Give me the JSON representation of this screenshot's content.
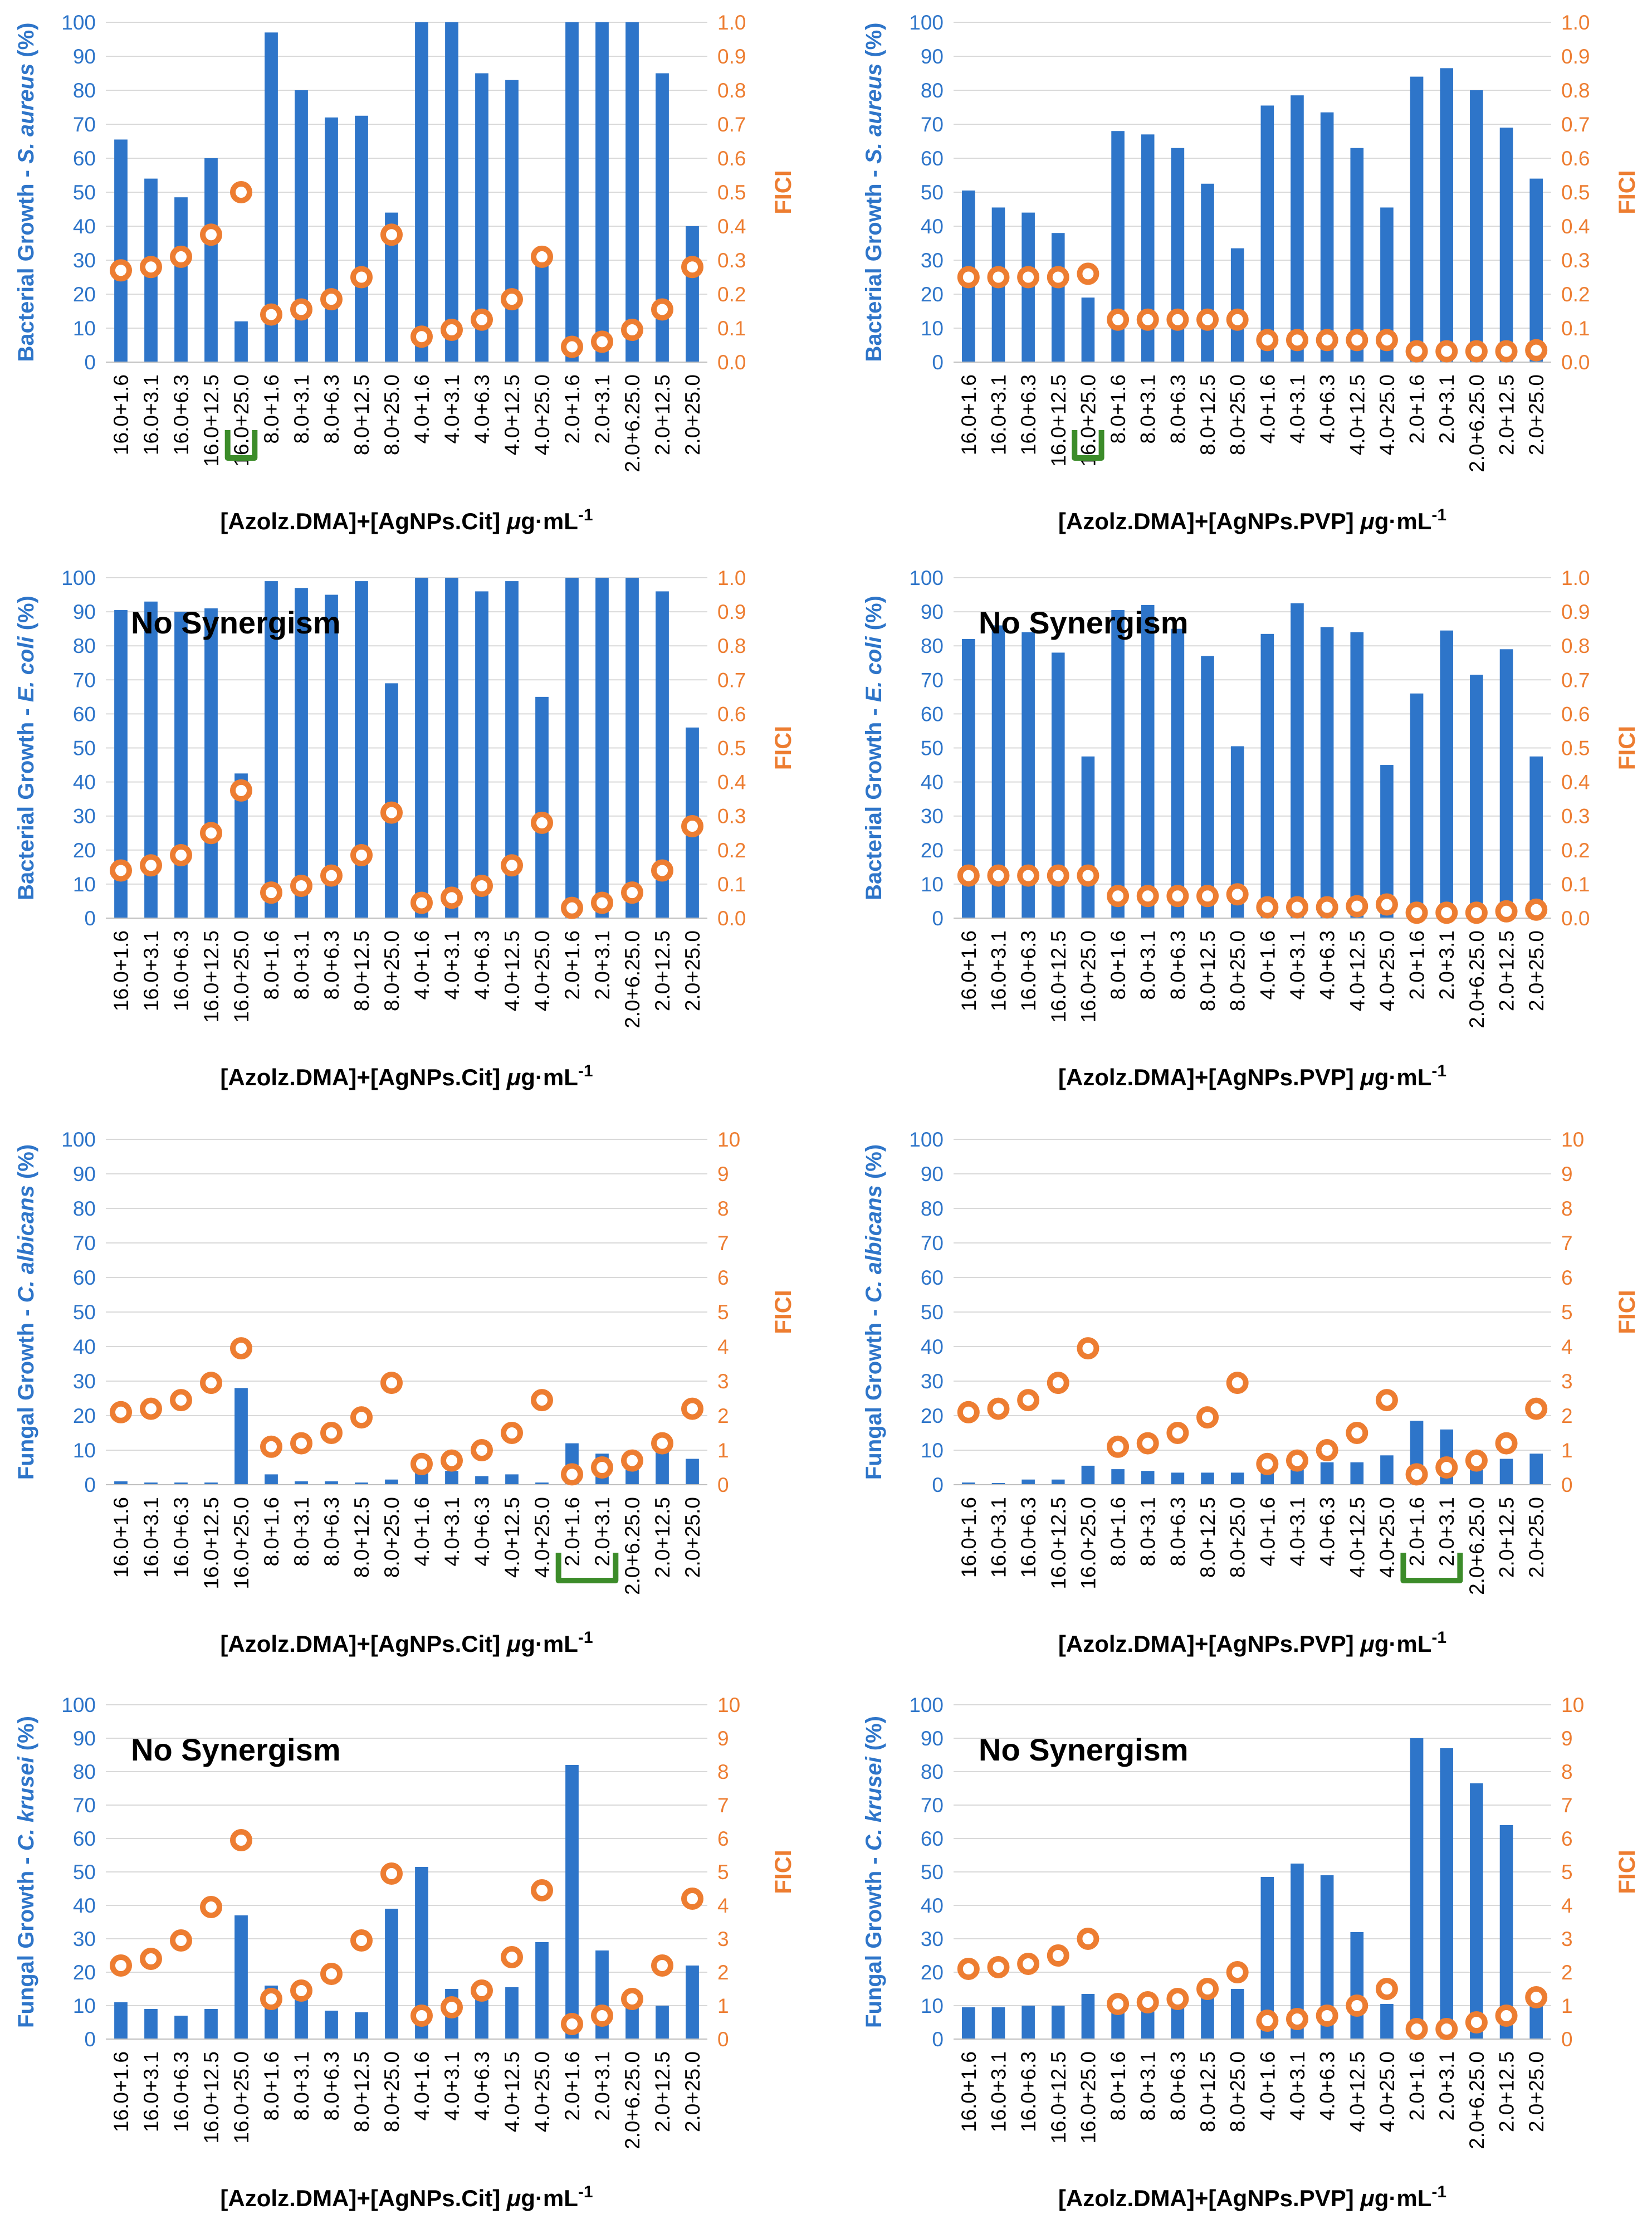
{
  "colors": {
    "bar": "#2E75C9",
    "fici": "#ED7D31",
    "axis_left": "#2E75C9",
    "axis_right": "#ED7D31",
    "grid": "#D9D9D9",
    "bracket": "#3C8C2A",
    "text": "#000000"
  },
  "labels": {
    "fici": "FICI",
    "no_synergism": "No Synergism",
    "xlabel_prefix": "[Azolz.DMA]+[AgNPs.",
    "xlabel_cit": "Cit",
    "xlabel_pvp": "PVP",
    "xlabel_suffix": "] ",
    "unit_mu": "μ",
    "unit_rest": "g·mL",
    "unit_exp": "-1",
    "ylabel_bacterial": "Bacterial Growth - ",
    "ylabel_fungal": "Fungal Growth - ",
    "ylabel_pct": " (%)",
    "org_sa": "S. aureus",
    "org_ec": "E. coli",
    "org_ca": "C. albicans",
    "org_ck": "C. krusei"
  },
  "chart_data": [
    {
      "type": "bar+scatter",
      "organism": "S. aureus",
      "nanoparticle": "Cit",
      "categories": [
        "16.0+1.6",
        "16.0+3.1",
        "16.0+6.3",
        "16.0+12.5",
        "16.0+25.0",
        "8.0+1.6",
        "8.0+3.1",
        "8.0+6.3",
        "8.0+12.5",
        "8.0+25.0",
        "4.0+1.6",
        "4.0+3.1",
        "4.0+6.3",
        "4.0+12.5",
        "4.0+25.0",
        "2.0+1.6",
        "2.0+3.1",
        "2.0+6.25.0",
        "2.0+12.5",
        "2.0+25.0"
      ],
      "bacterial_growth": [
        65.5,
        54,
        48.5,
        60,
        12,
        97,
        80,
        72,
        72.5,
        44,
        100,
        100,
        85,
        83,
        32,
        100,
        100,
        100,
        85,
        40
      ],
      "fici": [
        0.27,
        0.28,
        0.31,
        0.375,
        0.5,
        0.14,
        0.155,
        0.185,
        0.25,
        0.375,
        0.075,
        0.095,
        0.125,
        0.185,
        0.31,
        0.045,
        0.06,
        0.095,
        0.155,
        0.28
      ],
      "ylim": [
        0,
        100
      ],
      "y2lim": [
        0,
        1.0
      ],
      "y_ticks": [
        "0",
        "10",
        "20",
        "30",
        "40",
        "50",
        "60",
        "70",
        "80",
        "90",
        "100"
      ],
      "y2_ticks": [
        "0.0",
        "0.1",
        "0.2",
        "0.3",
        "0.4",
        "0.5",
        "0.6",
        "0.7",
        "0.8",
        "0.9",
        "1.0"
      ],
      "synergism_note": "",
      "bracket_start": 4,
      "bracket_end": 4
    },
    {
      "type": "bar+scatter",
      "organism": "S. aureus",
      "nanoparticle": "PVP",
      "categories": [
        "16.0+1.6",
        "16.0+3.1",
        "16.0+6.3",
        "16.0+12.5",
        "16.0+25.0",
        "8.0+1.6",
        "8.0+3.1",
        "8.0+6.3",
        "8.0+12.5",
        "8.0+25.0",
        "4.0+1.6",
        "4.0+3.1",
        "4.0+6.3",
        "4.0+12.5",
        "4.0+25.0",
        "2.0+1.6",
        "2.0+3.1",
        "2.0+6.25.0",
        "2.0+12.5",
        "2.0+25.0"
      ],
      "bacterial_growth": [
        50.5,
        45.5,
        44,
        38,
        19,
        68,
        67,
        63,
        52.5,
        33.5,
        75.5,
        78.5,
        73.5,
        63,
        45.5,
        84,
        86.5,
        80,
        69,
        54
      ],
      "fici": [
        0.25,
        0.25,
        0.25,
        0.25,
        0.26,
        0.125,
        0.125,
        0.125,
        0.125,
        0.125,
        0.065,
        0.065,
        0.065,
        0.065,
        0.065,
        0.032,
        0.032,
        0.032,
        0.032,
        0.035
      ],
      "ylim": [
        0,
        100
      ],
      "y2lim": [
        0,
        1.0
      ],
      "y_ticks": [
        "0",
        "10",
        "20",
        "30",
        "40",
        "50",
        "60",
        "70",
        "80",
        "90",
        "100"
      ],
      "y2_ticks": [
        "0.0",
        "0.1",
        "0.2",
        "0.3",
        "0.4",
        "0.5",
        "0.6",
        "0.7",
        "0.8",
        "0.9",
        "1.0"
      ],
      "synergism_note": "",
      "bracket_start": 4,
      "bracket_end": 4
    },
    {
      "type": "bar+scatter",
      "organism": "E. coli",
      "nanoparticle": "Cit",
      "categories": [
        "16.0+1.6",
        "16.0+3.1",
        "16.0+6.3",
        "16.0+12.5",
        "16.0+25.0",
        "8.0+1.6",
        "8.0+3.1",
        "8.0+6.3",
        "8.0+12.5",
        "8.0+25.0",
        "4.0+1.6",
        "4.0+3.1",
        "4.0+6.3",
        "4.0+12.5",
        "4.0+25.0",
        "2.0+1.6",
        "2.0+3.1",
        "2.0+6.25.0",
        "2.0+12.5",
        "2.0+25.0"
      ],
      "bacterial_growth": [
        90.5,
        93,
        90,
        91,
        42.5,
        99,
        97,
        95,
        99,
        69,
        100,
        100,
        96,
        99,
        65,
        100,
        100,
        100,
        96,
        56
      ],
      "fici": [
        0.14,
        0.155,
        0.185,
        0.25,
        0.375,
        0.075,
        0.095,
        0.125,
        0.185,
        0.31,
        0.045,
        0.06,
        0.095,
        0.155,
        0.28,
        0.03,
        0.045,
        0.075,
        0.14,
        0.27
      ],
      "ylim": [
        0,
        100
      ],
      "y2lim": [
        0,
        1.0
      ],
      "y_ticks": [
        "0",
        "10",
        "20",
        "30",
        "40",
        "50",
        "60",
        "70",
        "80",
        "90",
        "100"
      ],
      "y2_ticks": [
        "0.0",
        "0.1",
        "0.2",
        "0.3",
        "0.4",
        "0.5",
        "0.6",
        "0.7",
        "0.8",
        "0.9",
        "1.0"
      ],
      "synergism_note": "No Synergism",
      "bracket_start": -1,
      "bracket_end": -1
    },
    {
      "type": "bar+scatter",
      "organism": "E. coli",
      "nanoparticle": "PVP",
      "categories": [
        "16.0+1.6",
        "16.0+3.1",
        "16.0+6.3",
        "16.0+12.5",
        "16.0+25.0",
        "8.0+1.6",
        "8.0+3.1",
        "8.0+6.3",
        "8.0+12.5",
        "8.0+25.0",
        "4.0+1.6",
        "4.0+3.1",
        "4.0+6.3",
        "4.0+12.5",
        "4.0+25.0",
        "2.0+1.6",
        "2.0+3.1",
        "2.0+6.25.0",
        "2.0+12.5",
        "2.0+25.0"
      ],
      "bacterial_growth": [
        82,
        86,
        84,
        78,
        47.5,
        90.5,
        92,
        85,
        77,
        50.5,
        83.5,
        92.5,
        85.5,
        84,
        45,
        66,
        84.5,
        71.5,
        79,
        47.5
      ],
      "fici": [
        0.125,
        0.125,
        0.125,
        0.125,
        0.125,
        0.065,
        0.065,
        0.065,
        0.065,
        0.07,
        0.032,
        0.032,
        0.032,
        0.035,
        0.04,
        0.016,
        0.016,
        0.016,
        0.02,
        0.025
      ],
      "ylim": [
        0,
        100
      ],
      "y2lim": [
        0,
        1.0
      ],
      "y_ticks": [
        "0",
        "10",
        "20",
        "30",
        "40",
        "50",
        "60",
        "70",
        "80",
        "90",
        "100"
      ],
      "y2_ticks": [
        "0.0",
        "0.1",
        "0.2",
        "0.3",
        "0.4",
        "0.5",
        "0.6",
        "0.7",
        "0.8",
        "0.9",
        "1.0"
      ],
      "synergism_note": "No Synergism",
      "bracket_start": -1,
      "bracket_end": -1
    },
    {
      "type": "bar+scatter",
      "organism": "C. albicans",
      "nanoparticle": "Cit",
      "categories": [
        "16.0+1.6",
        "16.0+3.1",
        "16.0+6.3",
        "16.0+12.5",
        "16.0+25.0",
        "8.0+1.6",
        "8.0+3.1",
        "8.0+6.3",
        "8.0+12.5",
        "8.0+25.0",
        "4.0+1.6",
        "4.0+3.1",
        "4.0+6.3",
        "4.0+12.5",
        "4.0+25.0",
        "2.0+1.6",
        "2.0+3.1",
        "2.0+6.25.0",
        "2.0+12.5",
        "2.0+25.0"
      ],
      "fungal_growth": [
        1,
        0,
        -0.5,
        -0.5,
        28,
        3,
        1,
        1,
        0,
        1.5,
        5,
        4,
        2.5,
        3,
        -1,
        12,
        9,
        8,
        9.5,
        7.5
      ],
      "fici": [
        2.1,
        2.2,
        2.45,
        2.95,
        3.95,
        1.1,
        1.2,
        1.5,
        1.95,
        2.95,
        0.6,
        0.7,
        1.0,
        1.5,
        2.45,
        0.3,
        0.5,
        0.7,
        1.2,
        2.2
      ],
      "ylim": [
        0,
        100
      ],
      "y2lim": [
        0,
        10
      ],
      "y_ticks": [
        "0",
        "10",
        "20",
        "30",
        "40",
        "50",
        "60",
        "70",
        "80",
        "90",
        "100"
      ],
      "y2_ticks": [
        "0",
        "1",
        "2",
        "3",
        "4",
        "5",
        "6",
        "7",
        "8",
        "9",
        "10"
      ],
      "synergism_note": "",
      "bracket_start": 15,
      "bracket_end": 16
    },
    {
      "type": "bar+scatter",
      "organism": "C. albicans",
      "nanoparticle": "PVP",
      "categories": [
        "16.0+1.6",
        "16.0+3.1",
        "16.0+6.3",
        "16.0+12.5",
        "16.0+25.0",
        "8.0+1.6",
        "8.0+3.1",
        "8.0+6.3",
        "8.0+12.5",
        "8.0+25.0",
        "4.0+1.6",
        "4.0+3.1",
        "4.0+6.3",
        "4.0+12.5",
        "4.0+25.0",
        "2.0+1.6",
        "2.0+3.1",
        "2.0+6.25.0",
        "2.0+12.5",
        "2.0+25.0"
      ],
      "fungal_growth": [
        0,
        0.5,
        1.5,
        1.5,
        5.5,
        4.5,
        4,
        3.5,
        3.5,
        3.5,
        6,
        7,
        6.5,
        6.5,
        8.5,
        18.5,
        16,
        9,
        7.5,
        9
      ],
      "fici": [
        2.1,
        2.2,
        2.45,
        2.95,
        3.95,
        1.1,
        1.2,
        1.5,
        1.95,
        2.95,
        0.6,
        0.7,
        1.0,
        1.5,
        2.45,
        0.3,
        0.5,
        0.7,
        1.2,
        2.2
      ],
      "ylim": [
        0,
        100
      ],
      "y2lim": [
        0,
        10
      ],
      "y_ticks": [
        "0",
        "10",
        "20",
        "30",
        "40",
        "50",
        "60",
        "70",
        "80",
        "90",
        "100"
      ],
      "y2_ticks": [
        "0",
        "1",
        "2",
        "3",
        "4",
        "5",
        "6",
        "7",
        "8",
        "9",
        "10"
      ],
      "synergism_note": "",
      "bracket_start": 15,
      "bracket_end": 16
    },
    {
      "type": "bar+scatter",
      "organism": "C. krusei",
      "nanoparticle": "Cit",
      "categories": [
        "16.0+1.6",
        "16.0+3.1",
        "16.0+6.3",
        "16.0+12.5",
        "16.0+25.0",
        "8.0+1.6",
        "8.0+3.1",
        "8.0+6.3",
        "8.0+12.5",
        "8.0+25.0",
        "4.0+1.6",
        "4.0+3.1",
        "4.0+6.3",
        "4.0+12.5",
        "4.0+25.0",
        "2.0+1.6",
        "2.0+3.1",
        "2.0+6.25.0",
        "2.0+12.5",
        "2.0+25.0"
      ],
      "fungal_growth": [
        11,
        9,
        7,
        9,
        37,
        16,
        13,
        8.5,
        8,
        39,
        51.5,
        15,
        12,
        15.5,
        29,
        82,
        26.5,
        9.5,
        10,
        22
      ],
      "fici": [
        2.2,
        2.4,
        2.95,
        3.95,
        5.95,
        1.2,
        1.45,
        1.95,
        2.95,
        4.95,
        0.7,
        0.95,
        1.45,
        2.45,
        4.45,
        0.45,
        0.7,
        1.2,
        2.2,
        4.2
      ],
      "ylim": [
        0,
        100
      ],
      "y2lim": [
        0,
        10
      ],
      "y_ticks": [
        "0",
        "10",
        "20",
        "30",
        "40",
        "50",
        "60",
        "70",
        "80",
        "90",
        "100"
      ],
      "y2_ticks": [
        "0",
        "1",
        "2",
        "3",
        "4",
        "5",
        "6",
        "7",
        "8",
        "9",
        "10"
      ],
      "synergism_note": "No Synergism",
      "bracket_start": -1,
      "bracket_end": -1
    },
    {
      "type": "bar+scatter",
      "organism": "C. krusei",
      "nanoparticle": "PVP",
      "categories": [
        "16.0+1.6",
        "16.0+3.1",
        "16.0+6.3",
        "16.0+12.5",
        "16.0+25.0",
        "8.0+1.6",
        "8.0+3.1",
        "8.0+6.3",
        "8.0+12.5",
        "8.0+25.0",
        "4.0+1.6",
        "4.0+3.1",
        "4.0+6.3",
        "4.0+12.5",
        "4.0+25.0",
        "2.0+1.6",
        "2.0+3.1",
        "2.0+6.25.0",
        "2.0+12.5",
        "2.0+25.0"
      ],
      "fungal_growth": [
        9.5,
        9.5,
        10,
        10,
        13.5,
        11,
        11.5,
        11.5,
        13,
        15,
        48.5,
        52.5,
        49,
        32,
        10.5,
        90,
        87,
        76.5,
        64,
        11
      ],
      "fici": [
        2.1,
        2.15,
        2.25,
        2.5,
        3.0,
        1.05,
        1.1,
        1.2,
        1.5,
        2.0,
        0.55,
        0.6,
        0.7,
        1.0,
        1.5,
        0.3,
        0.3,
        0.5,
        0.7,
        1.25
      ],
      "ylim": [
        0,
        100
      ],
      "y2lim": [
        0,
        10
      ],
      "y_ticks": [
        "0",
        "10",
        "20",
        "30",
        "40",
        "50",
        "60",
        "70",
        "80",
        "90",
        "100"
      ],
      "y2_ticks": [
        "0",
        "1",
        "2",
        "3",
        "4",
        "5",
        "6",
        "7",
        "8",
        "9",
        "10"
      ],
      "synergism_note": "No Synergism",
      "bracket_start": -1,
      "bracket_end": -1
    }
  ]
}
